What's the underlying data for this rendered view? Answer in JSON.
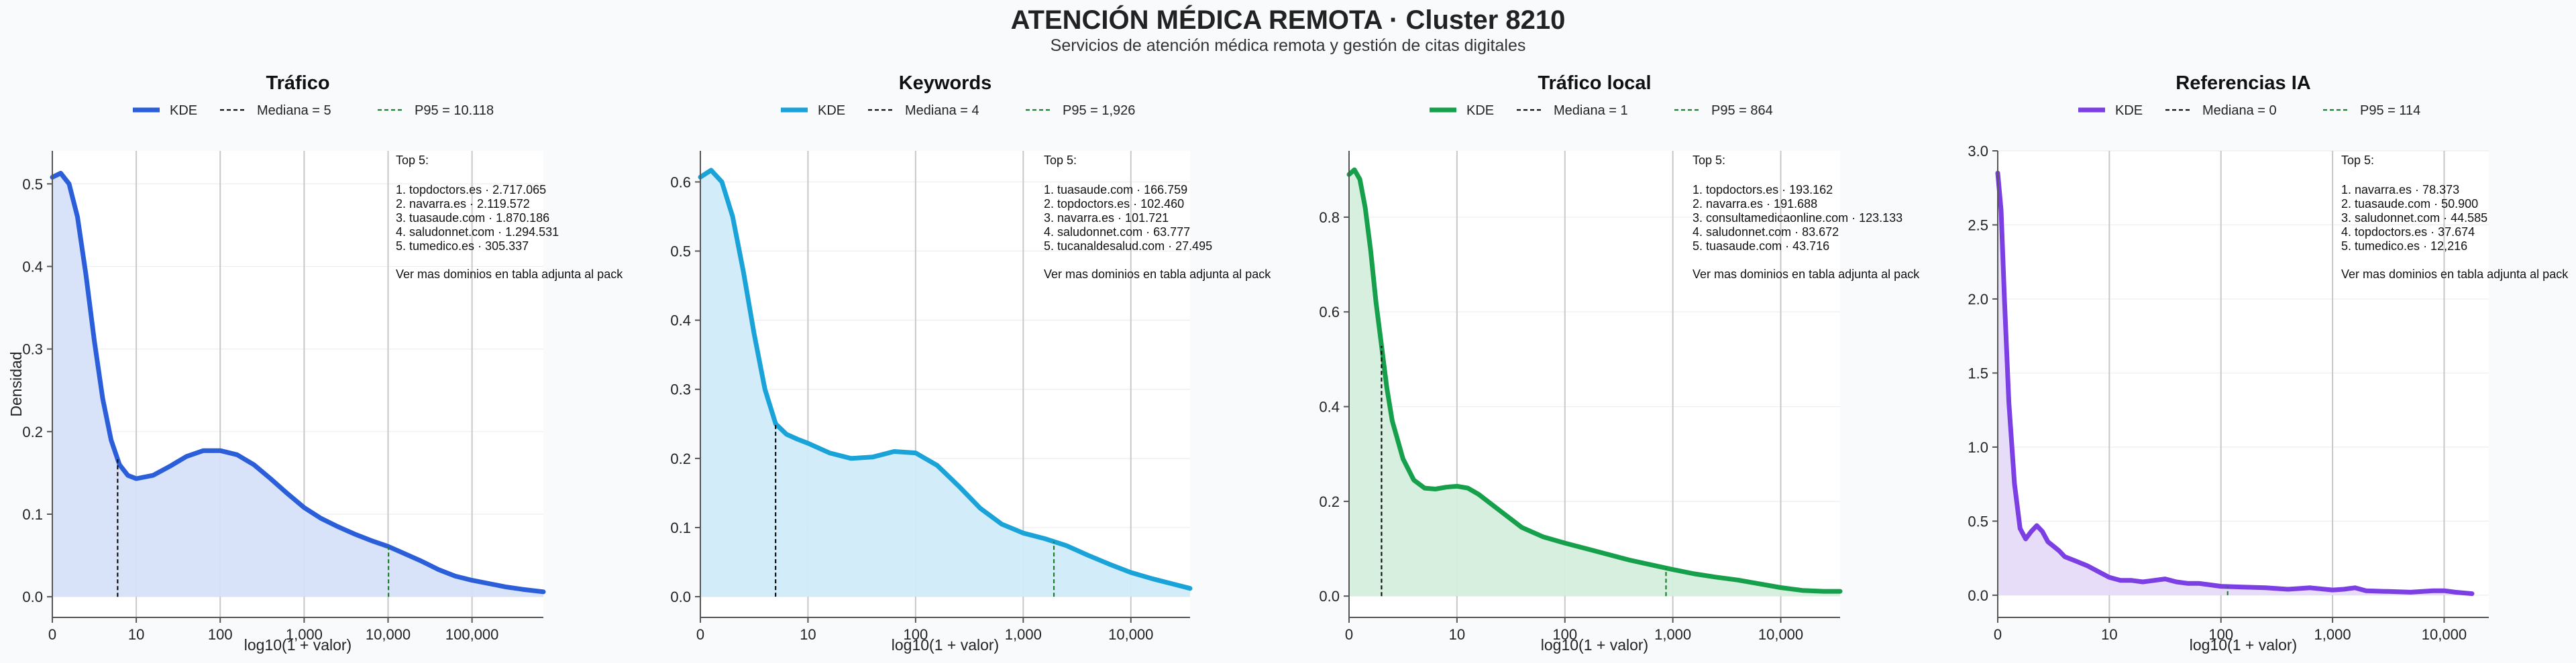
{
  "page": {
    "title": "ATENCIÓN MÉDICA REMOTA · Cluster 8210",
    "subtitle": "Servicios de atención médica remota y gestión de citas digitales"
  },
  "chart_data": [
    {
      "type": "area",
      "title": "Tráfico",
      "xlabel": "log10(1 + valor)",
      "ylabel": "Densidad",
      "color": "#2b5fd9",
      "fill": "#d6e0f8",
      "x_tick_labels": [
        "0",
        "10",
        "100",
        "1,000",
        "10,000",
        "100,000"
      ],
      "y_ticks": [
        0.0,
        0.1,
        0.2,
        0.3,
        0.4,
        0.5
      ],
      "y_tick_labels": [
        "0.0",
        "0.1",
        "0.2",
        "0.3",
        "0.4",
        "0.5"
      ],
      "xlim": [
        0,
        5.85
      ],
      "ylim": [
        -0.025,
        0.54
      ],
      "legend": [
        "KDE",
        "Mediana = 5",
        "P95 = 10.118"
      ],
      "median_x": 0.778,
      "p95_x": 4.005,
      "x": [
        0,
        0.1,
        0.2,
        0.3,
        0.4,
        0.5,
        0.6,
        0.7,
        0.8,
        0.9,
        1.0,
        1.2,
        1.4,
        1.6,
        1.8,
        2.0,
        2.2,
        2.4,
        2.6,
        2.8,
        3.0,
        3.2,
        3.4,
        3.6,
        3.8,
        4.0,
        4.2,
        4.4,
        4.6,
        4.8,
        5.0,
        5.2,
        5.4,
        5.6,
        5.85
      ],
      "y": [
        0.508,
        0.513,
        0.5,
        0.46,
        0.39,
        0.31,
        0.24,
        0.19,
        0.16,
        0.147,
        0.143,
        0.147,
        0.158,
        0.17,
        0.177,
        0.177,
        0.172,
        0.16,
        0.143,
        0.125,
        0.108,
        0.095,
        0.085,
        0.076,
        0.068,
        0.061,
        0.052,
        0.043,
        0.033,
        0.025,
        0.02,
        0.016,
        0.012,
        0.009,
        0.006
      ],
      "annotation": {
        "heading": "Top 5:",
        "items": [
          "1. topdoctors.es · 2.717.065",
          "2. navarra.es · 2.119.572",
          "3. tuasaude.com · 1.870.186",
          "4. saludonnet.com · 1.294.531",
          "5. tumedico.es · 305.337"
        ],
        "note": "Ver mas dominios en tabla adjunta al pack"
      }
    },
    {
      "type": "area",
      "title": "Keywords",
      "xlabel": "log10(1 + valor)",
      "ylabel": "",
      "color": "#1aa3d9",
      "fill": "#d0ecf9",
      "x_tick_labels": [
        "0",
        "10",
        "100",
        "1,000",
        "10,000"
      ],
      "y_ticks": [
        0.0,
        0.1,
        0.2,
        0.3,
        0.4,
        0.5,
        0.6
      ],
      "y_tick_labels": [
        "0.0",
        "0.1",
        "0.2",
        "0.3",
        "0.4",
        "0.5",
        "0.6"
      ],
      "xlim": [
        0,
        4.55
      ],
      "ylim": [
        -0.03,
        0.645
      ],
      "legend": [
        "KDE",
        "Mediana = 4",
        "P95 = 1,926"
      ],
      "median_x": 0.699,
      "p95_x": 3.285,
      "x": [
        0,
        0.1,
        0.2,
        0.3,
        0.4,
        0.5,
        0.6,
        0.7,
        0.8,
        0.9,
        1.0,
        1.2,
        1.4,
        1.6,
        1.8,
        2.0,
        2.2,
        2.4,
        2.6,
        2.8,
        3.0,
        3.2,
        3.4,
        3.6,
        3.8,
        4.0,
        4.2,
        4.4,
        4.55
      ],
      "y": [
        0.607,
        0.617,
        0.6,
        0.55,
        0.47,
        0.38,
        0.3,
        0.25,
        0.235,
        0.228,
        0.222,
        0.208,
        0.2,
        0.202,
        0.21,
        0.208,
        0.19,
        0.16,
        0.128,
        0.105,
        0.092,
        0.084,
        0.074,
        0.06,
        0.047,
        0.035,
        0.026,
        0.018,
        0.012
      ],
      "annotation": {
        "heading": "Top 5:",
        "items": [
          "1. tuasaude.com · 166.759",
          "2. topdoctors.es · 102.460",
          "3. navarra.es · 101.721",
          "4. saludonnet.com · 63.777",
          "5. tucanaldesalud.com · 27.495"
        ],
        "note": "Ver mas dominios en tabla adjunta al pack"
      }
    },
    {
      "type": "area",
      "title": "Tráfico local",
      "xlabel": "log10(1 + valor)",
      "ylabel": "",
      "color": "#17a04c",
      "fill": "#d4eedc",
      "x_tick_labels": [
        "0",
        "10",
        "100",
        "1,000",
        "10,000"
      ],
      "y_ticks": [
        0.0,
        0.2,
        0.4,
        0.6,
        0.8
      ],
      "y_tick_labels": [
        "0.0",
        "0.2",
        "0.4",
        "0.6",
        "0.8"
      ],
      "xlim": [
        0,
        4.55
      ],
      "ylim": [
        -0.045,
        0.94
      ],
      "legend": [
        "KDE",
        "Mediana = 1",
        "P95 = 864"
      ],
      "median_x": 0.301,
      "p95_x": 2.937,
      "x": [
        0,
        0.05,
        0.1,
        0.15,
        0.2,
        0.25,
        0.3,
        0.35,
        0.4,
        0.5,
        0.6,
        0.7,
        0.8,
        0.9,
        1.0,
        1.1,
        1.2,
        1.4,
        1.6,
        1.8,
        2.0,
        2.2,
        2.4,
        2.6,
        2.8,
        3.0,
        3.2,
        3.4,
        3.6,
        3.8,
        4.0,
        4.2,
        4.4,
        4.55
      ],
      "y": [
        0.89,
        0.9,
        0.88,
        0.82,
        0.73,
        0.62,
        0.53,
        0.44,
        0.37,
        0.29,
        0.245,
        0.228,
        0.226,
        0.23,
        0.232,
        0.228,
        0.215,
        0.18,
        0.145,
        0.125,
        0.112,
        0.1,
        0.088,
        0.076,
        0.066,
        0.056,
        0.047,
        0.04,
        0.034,
        0.026,
        0.018,
        0.012,
        0.01,
        0.01
      ],
      "annotation": {
        "heading": "Top 5:",
        "items": [
          "1. topdoctors.es · 193.162",
          "2. navarra.es · 191.688",
          "3. consultamedicaonline.com · 123.133",
          "4. saludonnet.com · 83.672",
          "5. tuasaude.com · 43.716"
        ],
        "note": "Ver mas dominios en tabla adjunta al pack"
      }
    },
    {
      "type": "area",
      "title": "Referencias IA",
      "xlabel": "log10(1 + valor)",
      "ylabel": "",
      "color": "#7b3fe4",
      "fill": "#e6dbf8",
      "x_tick_labels": [
        "0",
        "10",
        "100",
        "1,000",
        "10,000"
      ],
      "y_ticks": [
        0.0,
        0.5,
        1.0,
        1.5,
        2.0,
        2.5,
        3.0
      ],
      "y_tick_labels": [
        "0.0",
        "0.5",
        "1.0",
        "1.5",
        "2.0",
        "2.5",
        "3.0"
      ],
      "xlim": [
        0,
        4.4
      ],
      "ylim": [
        -0.15,
        3.0
      ],
      "legend": [
        "KDE",
        "Mediana = 0",
        "P95 = 114"
      ],
      "median_x": 0.0,
      "p95_x": 2.06,
      "x": [
        0,
        0.03,
        0.06,
        0.1,
        0.15,
        0.2,
        0.25,
        0.3,
        0.35,
        0.4,
        0.45,
        0.5,
        0.55,
        0.6,
        0.7,
        0.8,
        0.9,
        1.0,
        1.1,
        1.2,
        1.3,
        1.4,
        1.5,
        1.6,
        1.7,
        1.8,
        1.9,
        2.0,
        2.2,
        2.4,
        2.6,
        2.8,
        3.0,
        3.1,
        3.2,
        3.3,
        3.5,
        3.7,
        3.9,
        4.0,
        4.1,
        4.25
      ],
      "y": [
        2.85,
        2.6,
        2.0,
        1.3,
        0.75,
        0.45,
        0.38,
        0.43,
        0.47,
        0.43,
        0.36,
        0.33,
        0.3,
        0.26,
        0.23,
        0.2,
        0.16,
        0.12,
        0.1,
        0.1,
        0.09,
        0.1,
        0.11,
        0.09,
        0.08,
        0.08,
        0.07,
        0.06,
        0.055,
        0.05,
        0.04,
        0.05,
        0.035,
        0.04,
        0.05,
        0.03,
        0.025,
        0.02,
        0.03,
        0.03,
        0.02,
        0.01
      ],
      "annotation": {
        "heading": "Top 5:",
        "items": [
          "1. navarra.es · 78.373",
          "2. tuasaude.com · 50.900",
          "3. saludonnet.com · 44.585",
          "4. topdoctors.es · 37.674",
          "5. tumedico.es · 12,216"
        ],
        "note": "Ver mas dominios en tabla adjunta al pack"
      }
    }
  ]
}
